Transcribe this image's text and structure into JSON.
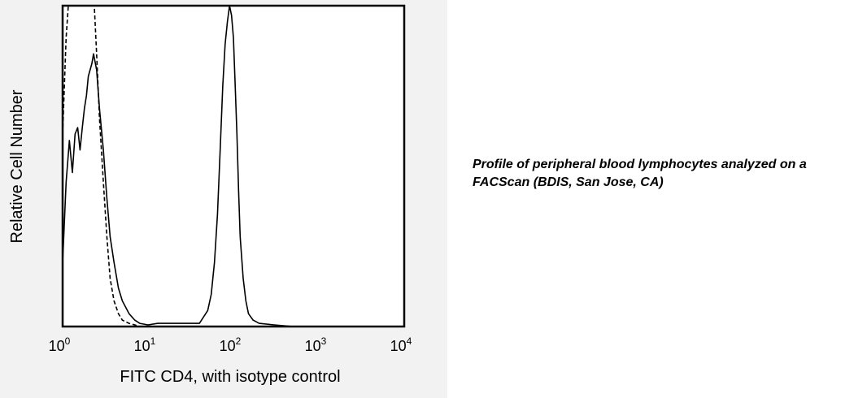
{
  "chart_data": {
    "type": "line",
    "xscale": "log",
    "xlim": [
      1,
      10000
    ],
    "xticks": [
      {
        "base": "10",
        "exp": "0"
      },
      {
        "base": "10",
        "exp": "1"
      },
      {
        "base": "10",
        "exp": "2"
      },
      {
        "base": "10",
        "exp": "3"
      },
      {
        "base": "10",
        "exp": "4"
      }
    ],
    "xlabel": "FITC CD4, with isotype control",
    "ylabel": "Relative Cell Number",
    "yticks": "none",
    "grid": false,
    "series": [
      {
        "style": "solid",
        "color": "#000000",
        "x": [
          1.0,
          1.1,
          1.2,
          1.3,
          1.4,
          1.5,
          1.6,
          1.7,
          1.8,
          1.9,
          2.0,
          2.1,
          2.2,
          2.3,
          2.5,
          2.7,
          3.0,
          3.3,
          3.6,
          4.0,
          4.5,
          5,
          6,
          7,
          8,
          10,
          13,
          17,
          22,
          30,
          40,
          50,
          55,
          60,
          65,
          70,
          75,
          80,
          85,
          90,
          95,
          100,
          105,
          110,
          115,
          120,
          130,
          140,
          150,
          170,
          200,
          300,
          500,
          10000
        ],
        "y": [
          0.2,
          0.45,
          0.58,
          0.48,
          0.6,
          0.62,
          0.55,
          0.62,
          0.68,
          0.72,
          0.78,
          0.8,
          0.82,
          0.85,
          0.8,
          0.68,
          0.55,
          0.4,
          0.28,
          0.2,
          0.12,
          0.08,
          0.04,
          0.02,
          0.01,
          0.005,
          0.01,
          0.01,
          0.01,
          0.01,
          0.01,
          0.05,
          0.1,
          0.2,
          0.35,
          0.55,
          0.75,
          0.88,
          0.95,
          1.0,
          0.97,
          0.9,
          0.75,
          0.6,
          0.42,
          0.28,
          0.15,
          0.08,
          0.04,
          0.02,
          0.01,
          0.005,
          0,
          0
        ]
      },
      {
        "style": "dashed",
        "color": "#000000",
        "x": [
          1.0,
          1.1,
          1.2,
          1.3,
          1.4,
          1.5,
          1.6,
          1.7,
          1.8,
          1.9,
          2.0,
          2.1,
          2.2,
          2.3,
          2.5,
          2.7,
          3.0,
          3.3,
          3.6,
          4.0,
          4.5,
          5,
          6,
          7,
          8,
          10,
          13,
          20,
          10000
        ],
        "y": [
          0.6,
          0.9,
          1.05,
          1.12,
          1.2,
          1.25,
          1.22,
          1.15,
          1.08,
          1.02,
          1.1,
          1.18,
          1.15,
          1.05,
          0.85,
          0.65,
          0.45,
          0.28,
          0.15,
          0.08,
          0.04,
          0.02,
          0.01,
          0.005,
          0,
          0,
          0,
          0,
          0
        ]
      }
    ]
  },
  "caption": "Profile of peripheral blood lymphocytes analyzed on a FACScan (BDIS, San Jose, CA)"
}
